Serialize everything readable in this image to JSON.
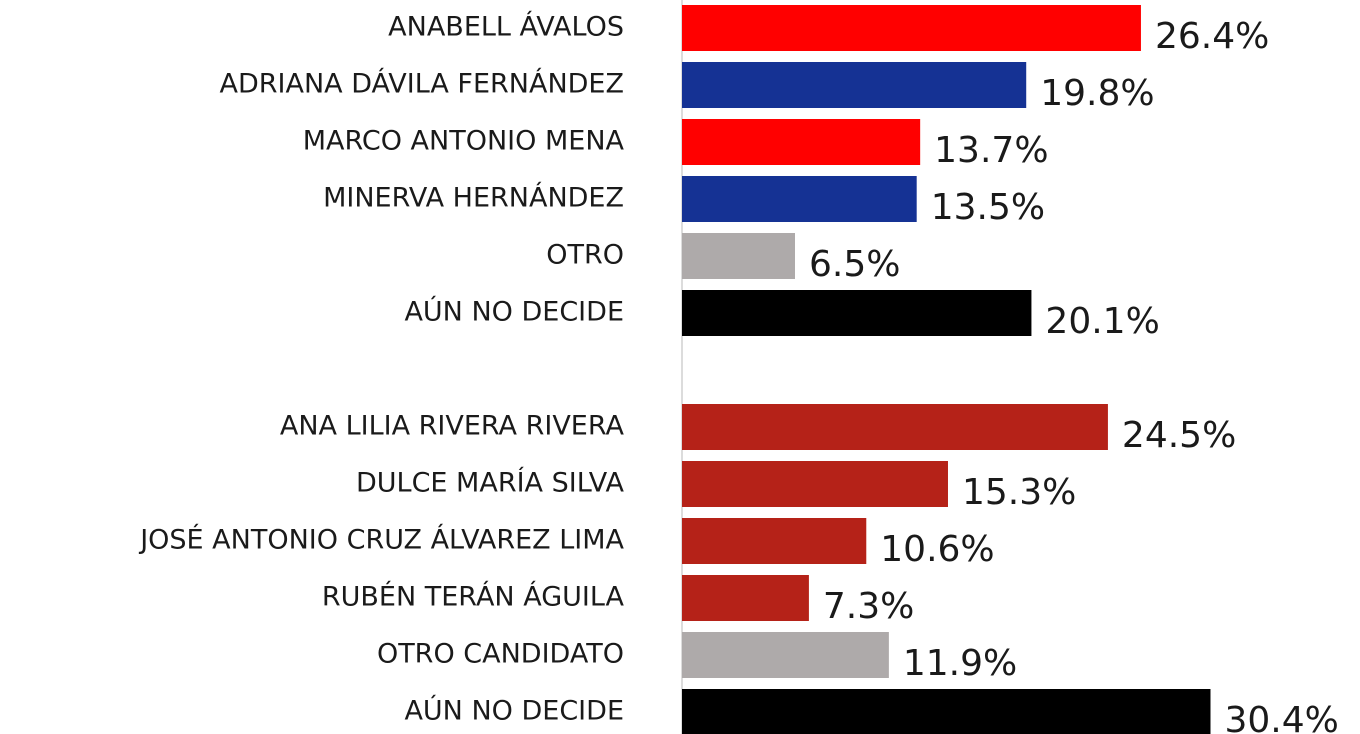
{
  "chart_data": {
    "type": "hbar",
    "categories": [
      "ANABELL ÁVALOS",
      "ADRIANA DÁVILA FERNÁNDEZ",
      "MARCO ANTONIO MENA",
      "MINERVA HERNÁNDEZ",
      "OTRO",
      "AÚN NO DECIDE",
      null,
      "ANA LILIA RIVERA RIVERA",
      "DULCE MARÍA SILVA",
      "JOSÉ ANTONIO CRUZ ÁLVAREZ LIMA",
      "RUBÉN TERÁN ÁGUILA",
      "OTRO CANDIDATO",
      "AÚN NO DECIDE"
    ],
    "values": [
      26.4,
      19.8,
      13.7,
      13.5,
      6.5,
      20.1,
      null,
      24.5,
      15.3,
      10.6,
      7.3,
      11.9,
      30.4
    ],
    "value_labels": [
      "26.4%",
      "19.8%",
      "13.7%",
      "13.5%",
      "6.5%",
      "20.1%",
      null,
      "24.5%",
      "15.3%",
      "10.6%",
      "7.3%",
      "11.9%",
      "30.4%"
    ],
    "colors": [
      "#ff0000",
      "#153294",
      "#ff0000",
      "#153294",
      "#aeaaaa",
      "#000000",
      null,
      "#b52218",
      "#b52218",
      "#b52218",
      "#b52218",
      "#aeaaaa",
      "#000000"
    ],
    "xlim": [
      0,
      39
    ]
  }
}
